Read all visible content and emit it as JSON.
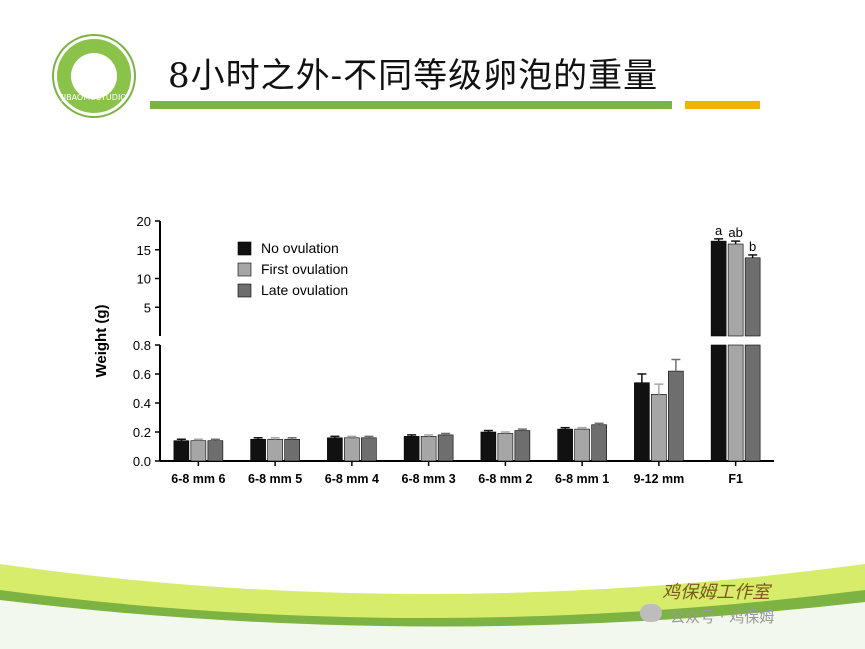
{
  "header": {
    "title": "8小时之外-不同等级卵泡的重量",
    "logo_text": "JIBAOMUSTUDIO"
  },
  "colors": {
    "accent_green": "#7cb342",
    "accent_yellow": "#f0b400",
    "series_no": "#111111",
    "series_first": "#a6a6a6",
    "series_late": "#6e6e6e"
  },
  "chart_data": {
    "type": "bar",
    "ylabel": "Weight (g)",
    "categories": [
      "6-8 mm 6",
      "6-8 mm 5",
      "6-8 mm 4",
      "6-8 mm 3",
      "6-8 mm 2",
      "6-8 mm 1",
      "9-12 mm",
      "F1"
    ],
    "y_axis": "broken",
    "lower_ylim": [
      0,
      0.8
    ],
    "lower_ticks": [
      "0.0",
      "0.2",
      "0.4",
      "0.6",
      "0.8"
    ],
    "upper_ylim": [
      0,
      20
    ],
    "upper_ticks": [
      "5",
      "10",
      "15",
      "20"
    ],
    "legend_position": "top-left",
    "series": [
      {
        "name": "No ovulation",
        "color": "#111111",
        "values": [
          0.14,
          0.15,
          0.16,
          0.17,
          0.2,
          0.22,
          0.54,
          16.5
        ],
        "errors": [
          0.01,
          0.01,
          0.01,
          0.01,
          0.01,
          0.01,
          0.06,
          0.4
        ]
      },
      {
        "name": "First ovulation",
        "color": "#a6a6a6",
        "values": [
          0.14,
          0.15,
          0.16,
          0.17,
          0.19,
          0.22,
          0.46,
          16.0
        ],
        "errors": [
          0.01,
          0.01,
          0.01,
          0.01,
          0.01,
          0.01,
          0.07,
          0.5
        ]
      },
      {
        "name": "Late ovulation",
        "color": "#6e6e6e",
        "values": [
          0.14,
          0.15,
          0.16,
          0.18,
          0.21,
          0.25,
          0.62,
          13.6
        ],
        "errors": [
          0.01,
          0.01,
          0.01,
          0.01,
          0.01,
          0.01,
          0.08,
          0.5
        ]
      }
    ],
    "annotations": [
      {
        "category": "F1",
        "series": "No ovulation",
        "text": "a"
      },
      {
        "category": "F1",
        "series": "First ovulation",
        "text": "ab"
      },
      {
        "category": "F1",
        "series": "Late ovulation",
        "text": "b"
      }
    ]
  },
  "footer": {
    "watermark": "公众号 · 鸡保姆",
    "signature": "鸡保姆工作室"
  }
}
